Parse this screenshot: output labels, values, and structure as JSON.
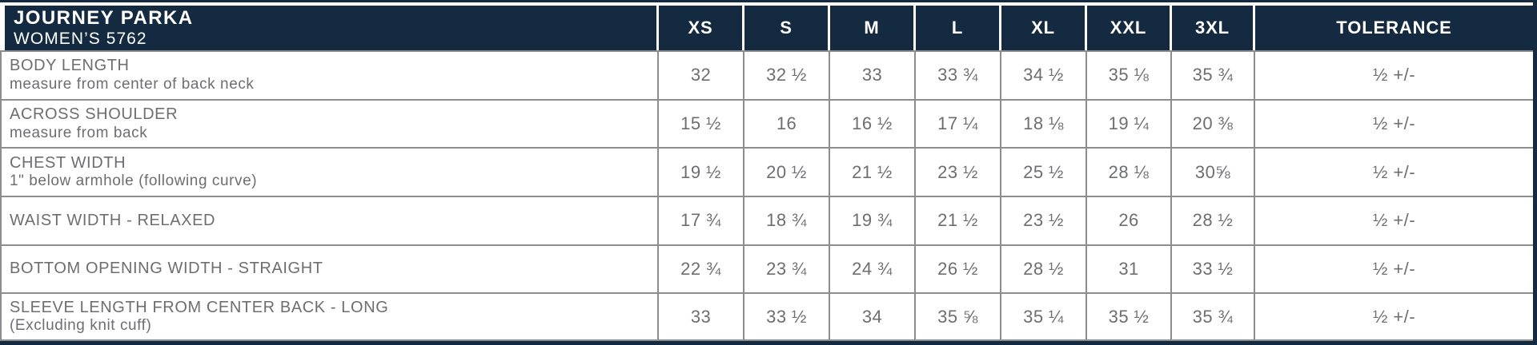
{
  "table": {
    "title": "JOURNEY PARKA",
    "subtitle": "WOMEN’S 5762",
    "size_headers": [
      "XS",
      "S",
      "M",
      "L",
      "XL",
      "XXL",
      "3XL"
    ],
    "tolerance_header": "TOLERANCE",
    "rows": [
      {
        "label": "BODY LENGTH",
        "sublabel": "measure from center of back neck",
        "values": [
          "32",
          "32 ½",
          "33",
          "33 ¾",
          "34 ½",
          "35 ⅛",
          "35 ¾"
        ],
        "tolerance": "½ +/-"
      },
      {
        "label": "ACROSS SHOULDER",
        "sublabel": "measure from back",
        "values": [
          "15 ½",
          "16",
          "16 ½",
          "17 ¼",
          "18 ⅛",
          "19 ¼",
          "20 ⅜"
        ],
        "tolerance": "½ +/-"
      },
      {
        "label": "CHEST WIDTH",
        "sublabel": "1\" below armhole (following curve)",
        "values": [
          "19 ½",
          "20 ½",
          "21 ½",
          "23 ½",
          "25 ½",
          "28 ⅛",
          "30⅝"
        ],
        "tolerance": "½ +/-"
      },
      {
        "label": "WAIST WIDTH - RELAXED",
        "sublabel": "",
        "values": [
          "17 ¾",
          "18 ¾",
          "19 ¾",
          "21 ½",
          "23 ½",
          "26",
          "28 ½"
        ],
        "tolerance": "½ +/-"
      },
      {
        "label": "BOTTOM OPENING WIDTH - STRAIGHT",
        "sublabel": "",
        "values": [
          "22 ¾",
          "23 ¾",
          "24 ¾",
          "26 ½",
          "28 ½",
          "31",
          "33 ½"
        ],
        "tolerance": "½ +/-"
      },
      {
        "label": "SLEEVE LENGTH FROM CENTER BACK - LONG",
        "sublabel": "(Excluding knit cuff)",
        "values": [
          "33",
          "33 ½",
          "34",
          "35 ⅝",
          "35 ¼",
          "35 ½",
          "35 ¾"
        ],
        "tolerance": "½ +/-"
      }
    ]
  },
  "colors": {
    "navy": "#142a40",
    "text_gray": "#6d6e71",
    "grid_gray": "#8b8d90",
    "white": "#ffffff"
  }
}
